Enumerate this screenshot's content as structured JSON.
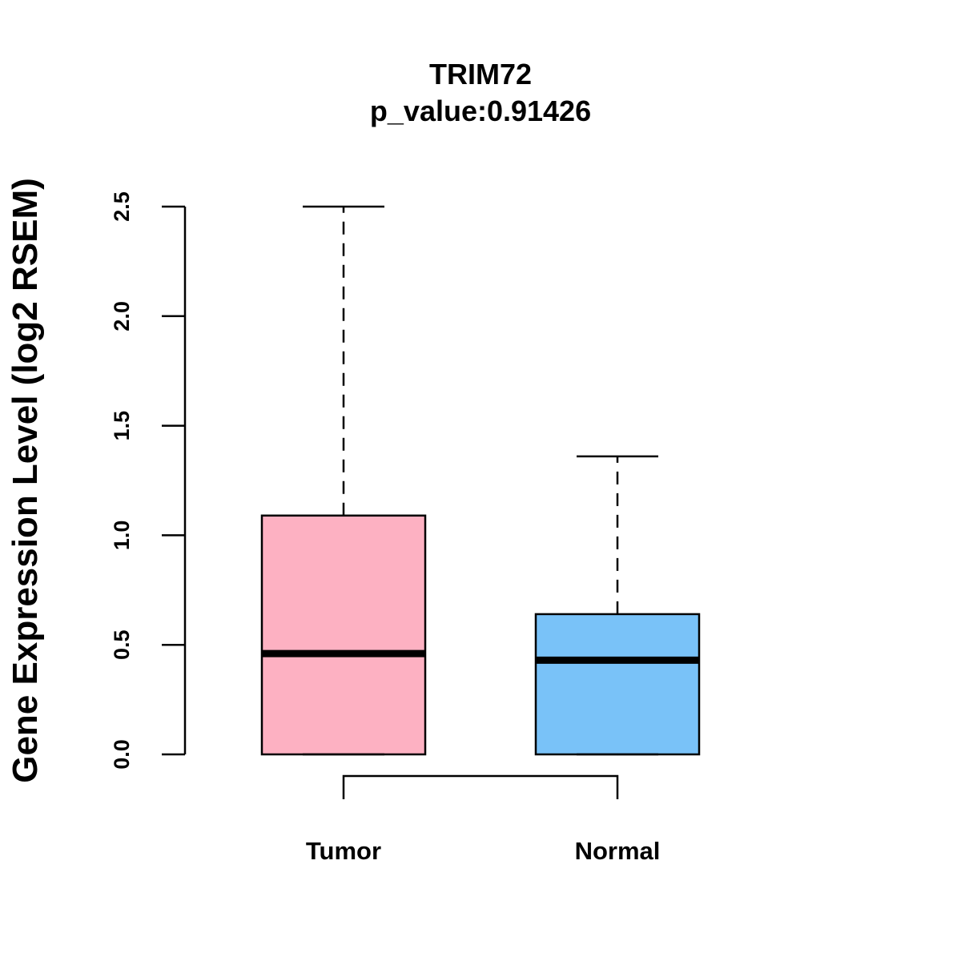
{
  "chart_data": {
    "type": "boxplot",
    "title": "TRIM72",
    "subtitle": "p_value:0.91426",
    "xlabel": "",
    "ylabel": "Gene Expression Level (log2 RSEM)",
    "ylim": [
      0,
      2.5
    ],
    "yticks": [
      "0.0",
      "0.5",
      "1.0",
      "1.5",
      "2.0",
      "2.5"
    ],
    "ytick_values": [
      0,
      0.5,
      1.0,
      1.5,
      2.0,
      2.5
    ],
    "grid": false,
    "categories": [
      "Tumor",
      "Normal"
    ],
    "boxes": [
      {
        "name": "Tumor",
        "min": 0.0,
        "q1": 0.0,
        "median": 0.46,
        "q3": 1.09,
        "max": 2.5,
        "color": "#FDB1C2"
      },
      {
        "name": "Normal",
        "min": 0.0,
        "q1": 0.0,
        "median": 0.43,
        "q3": 0.64,
        "max": 1.36,
        "color": "#79C2F8"
      }
    ],
    "comparison_bracket": {
      "from": "Tumor",
      "to": "Normal"
    }
  }
}
